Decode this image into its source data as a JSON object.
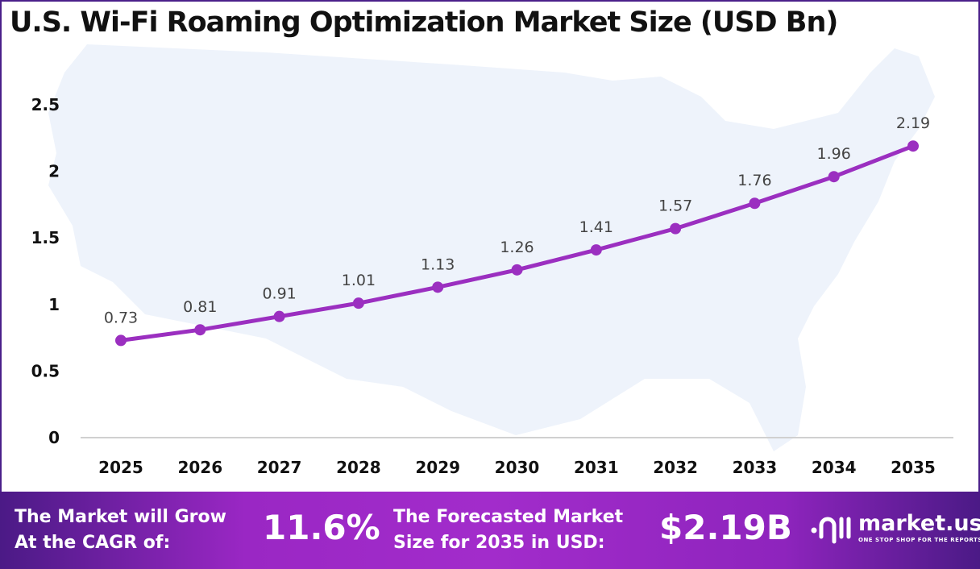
{
  "chart_data": {
    "type": "line",
    "title": "U.S. Wi-Fi Roaming Optimization Market Size (USD Bn)",
    "categories": [
      "2025",
      "2026",
      "2027",
      "2028",
      "2029",
      "2030",
      "2031",
      "2032",
      "2033",
      "2034",
      "2035"
    ],
    "values": [
      0.73,
      0.81,
      0.91,
      1.01,
      1.13,
      1.26,
      1.41,
      1.57,
      1.76,
      1.96,
      2.19
    ],
    "data_labels": [
      "0.73",
      "0.81",
      "0.91",
      "1.01",
      "1.13",
      "1.26",
      "1.41",
      "1.57",
      "1.76",
      "1.96",
      "2.19"
    ],
    "yticks": [
      "0",
      "0.5",
      "1",
      "1.5",
      "2",
      "2.5"
    ],
    "ylim": [
      0,
      2.5
    ],
    "xlabel": "",
    "ylabel": "",
    "grid": false,
    "line_color": "#9b2fc0",
    "background": "U.S. map silhouette"
  },
  "footer": {
    "cagr_label_1": "The Market will Grow",
    "cagr_label_2": "At the CAGR of:",
    "cagr_value": "11.6%",
    "forecast_label_1": "The Forecasted Market",
    "forecast_label_2": "Size for 2035 in USD:",
    "forecast_value": "$2.19B",
    "logo_name": "market.us",
    "logo_tagline": "ONE STOP SHOP FOR THE REPORTS"
  }
}
